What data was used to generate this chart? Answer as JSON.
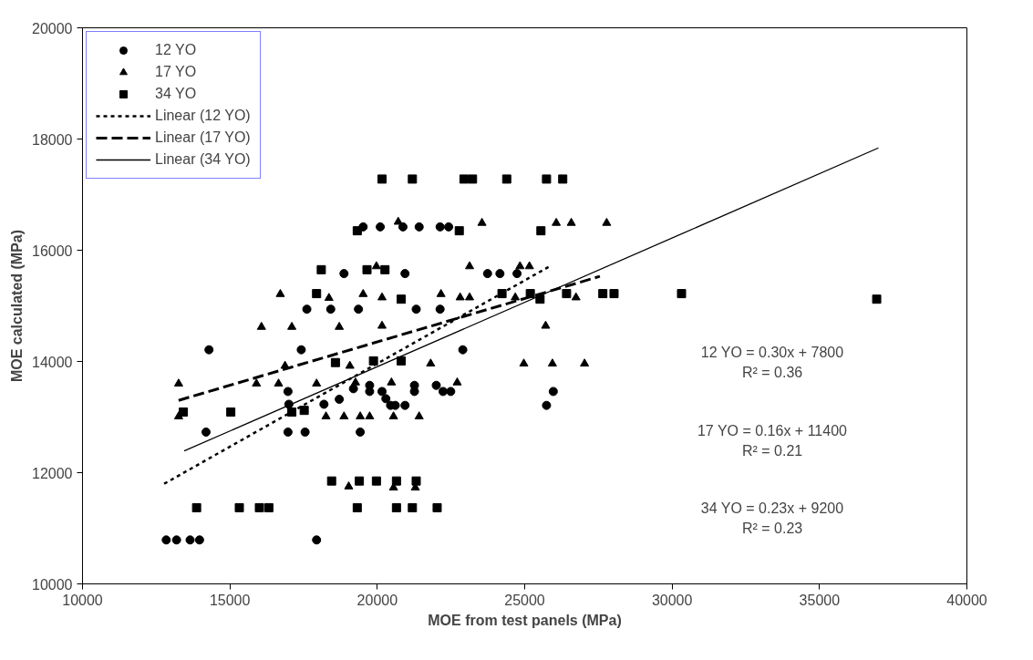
{
  "chart_data": {
    "type": "scatter",
    "xlabel": "MOE from test panels (MPa)",
    "ylabel": "MOE calculated (MPa)",
    "xlim": [
      10000,
      40000
    ],
    "xticks": [
      10000,
      15000,
      20000,
      25000,
      30000,
      35000,
      40000
    ],
    "ylim": [
      10000,
      20000
    ],
    "yticks": [
      10000,
      12000,
      14000,
      16000,
      18000,
      20000
    ],
    "grid": false,
    "legend": "top left",
    "annotations": [
      "12 YO = 0.30x + 7800\nR² = 0.36",
      "17 YO = 0.16x + 11400\nR² = 0.21",
      "34 YO = 0.23x + 9200\nR² = 0.23"
    ],
    "series": [
      {
        "name": "12 YO",
        "color": "#000000",
        "marker": "circle",
        "x": [
          12840,
          13190,
          13650,
          13970,
          17940,
          14190,
          14290,
          17420,
          16970,
          17000,
          16970,
          17550,
          18190,
          18710,
          17610,
          18420,
          19360,
          18870,
          19520,
          20100,
          20870,
          21420,
          22130,
          22420,
          21320,
          22130,
          20940,
          23740,
          24160,
          24740,
          22900,
          19190,
          19740,
          19740,
          20160,
          20290,
          20450,
          20610,
          20940,
          21260,
          21260,
          22000,
          22230,
          22490,
          19420,
          25970,
          25740
        ],
        "values": [
          10790,
          10790,
          10790,
          10790,
          10790,
          12730,
          14210,
          14210,
          13460,
          13230,
          12730,
          12730,
          13230,
          13320,
          14940,
          14940,
          14940,
          15580,
          16420,
          16420,
          16420,
          16420,
          16420,
          16420,
          14940,
          14940,
          15580,
          15580,
          15580,
          15580,
          14210,
          13510,
          13570,
          13460,
          13460,
          13330,
          13210,
          13210,
          13210,
          13570,
          13460,
          13570,
          13460,
          13460,
          12730,
          13460,
          13210
        ]
      },
      {
        "name": "17 YO",
        "color": "#000000",
        "marker": "triangle",
        "x": [
          13260,
          13260,
          16070,
          16710,
          17100,
          16870,
          15900,
          16650,
          17940,
          18360,
          18710,
          19070,
          18260,
          18870,
          19030,
          20710,
          23550,
          26070,
          26580,
          27780,
          19970,
          23130,
          24840,
          25160,
          19520,
          20160,
          22160,
          22810,
          23130,
          24680,
          26740,
          20160,
          25710,
          21810,
          24970,
          25940,
          27030,
          19260,
          20480,
          22710,
          19420,
          19740,
          20550,
          21420,
          20550,
          21290
        ],
        "values": [
          13600,
          13010,
          14620,
          15210,
          14620,
          13920,
          13600,
          13600,
          13600,
          15140,
          14620,
          13920,
          13010,
          13010,
          11750,
          16510,
          16490,
          16490,
          16490,
          16490,
          15710,
          15710,
          15710,
          15710,
          15210,
          15150,
          15210,
          15150,
          15150,
          15150,
          15150,
          14640,
          14640,
          13960,
          13960,
          13960,
          13960,
          13620,
          13620,
          13620,
          13010,
          13010,
          13010,
          13010,
          11730,
          11730
        ]
      },
      {
        "name": "34 YO",
        "color": "#000000",
        "marker": "square",
        "x": [
          13420,
          15030,
          17100,
          17520,
          13870,
          15320,
          16000,
          16320,
          18450,
          18100,
          17940,
          18580,
          20160,
          21190,
          22940,
          23230,
          24390,
          25740,
          26290,
          19320,
          22780,
          25550,
          19650,
          20260,
          20810,
          24230,
          25190,
          25520,
          26420,
          27650,
          28030,
          19870,
          20810,
          19390,
          19970,
          20650,
          21320,
          19320,
          20650,
          21190,
          22030,
          30320,
          36940
        ],
        "values": [
          13090,
          13090,
          13090,
          13120,
          11370,
          11370,
          11370,
          11370,
          11850,
          15650,
          15220,
          13980,
          17280,
          17280,
          17280,
          17280,
          17280,
          17280,
          17280,
          16350,
          16350,
          16350,
          15650,
          15650,
          15120,
          15220,
          15220,
          15120,
          15220,
          15220,
          15220,
          14010,
          14010,
          11850,
          11850,
          11850,
          11850,
          11370,
          11370,
          11370,
          11370,
          15220,
          15120
        ]
      },
      {
        "name": "Linear (12 YO)",
        "type": "line",
        "color": "#000000",
        "line_style": "dotted",
        "x": [
          12770,
          25810
        ],
        "values": [
          11800,
          15700
        ]
      },
      {
        "name": "Linear (17 YO)",
        "type": "line",
        "color": "#000000",
        "line_style": "dashed",
        "x": [
          13260,
          27550
        ],
        "values": [
          13300,
          15530
        ]
      },
      {
        "name": "Linear (34 YO)",
        "type": "line",
        "color": "#000000",
        "line_style": "solid",
        "x": [
          13450,
          37000
        ],
        "values": [
          12390,
          17840
        ]
      }
    ]
  }
}
